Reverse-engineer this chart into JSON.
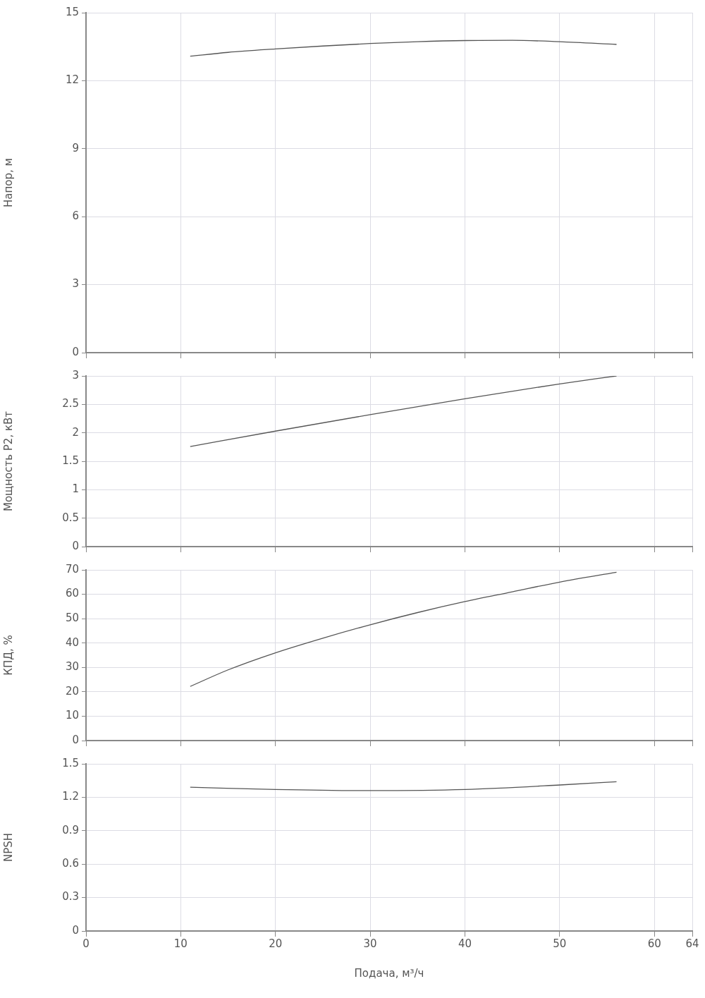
{
  "chart_data": [
    {
      "type": "line",
      "ylabel": "Напор, м",
      "x": [
        11,
        15,
        20,
        25,
        30,
        35,
        40,
        45,
        50,
        56
      ],
      "series": [
        {
          "color": "#555555",
          "values": [
            13.08,
            13.25,
            13.4,
            13.53,
            13.64,
            13.72,
            13.77,
            13.78,
            13.72,
            13.6
          ]
        }
      ],
      "xlim": [
        0,
        64
      ],
      "xticks": [
        0,
        10,
        20,
        30,
        40,
        50,
        60,
        64
      ],
      "ylim": [
        0,
        15
      ],
      "yticks": [
        0,
        3,
        6,
        9,
        12,
        15
      ],
      "grid": true,
      "tick_labels": "y",
      "marker": "none",
      "line_style": "solid",
      "legend": false
    },
    {
      "type": "line",
      "ylabel": "Мощность P2, кВт",
      "x": [
        11,
        20,
        30,
        40,
        50,
        56
      ],
      "series": [
        {
          "color": "#555555",
          "values": [
            1.76,
            2.03,
            2.32,
            2.6,
            2.86,
            3.0
          ]
        }
      ],
      "xlim": [
        0,
        64
      ],
      "xticks": [
        0,
        10,
        20,
        30,
        40,
        50,
        60,
        64
      ],
      "ylim": [
        0,
        3
      ],
      "yticks": [
        0,
        0.5,
        1,
        1.5,
        2,
        2.5,
        3
      ],
      "grid": true,
      "tick_labels": "y",
      "marker": "none",
      "line_style": "solid",
      "legend": false
    },
    {
      "type": "line",
      "ylabel": "КПД, %",
      "x": [
        11,
        15,
        20,
        25,
        30,
        35,
        40,
        45,
        50,
        56
      ],
      "series": [
        {
          "color": "#555555",
          "values": [
            22.2,
            29,
            36,
            42,
            47.5,
            52.5,
            57,
            61,
            65,
            69
          ]
        }
      ],
      "xlim": [
        0,
        64
      ],
      "xticks": [
        0,
        10,
        20,
        30,
        40,
        50,
        60,
        64
      ],
      "ylim": [
        0,
        70
      ],
      "yticks": [
        0,
        10,
        20,
        30,
        40,
        50,
        60,
        70
      ],
      "grid": true,
      "tick_labels": "y",
      "marker": "none",
      "line_style": "solid",
      "legend": false
    },
    {
      "type": "line",
      "ylabel": "NPSH",
      "xlabel": "Подача, м³/ч",
      "x": [
        11,
        20,
        30,
        40,
        50,
        56
      ],
      "series": [
        {
          "color": "#555555",
          "values": [
            1.29,
            1.27,
            1.26,
            1.27,
            1.31,
            1.34
          ]
        }
      ],
      "xlim": [
        0,
        64
      ],
      "xticks": [
        0,
        10,
        20,
        30,
        40,
        50,
        60,
        64
      ],
      "ylim": [
        0,
        1.5
      ],
      "yticks": [
        0,
        0.3,
        0.6,
        0.9,
        1.2,
        1.5
      ],
      "grid": true,
      "marker": "none",
      "line_style": "solid",
      "legend": false
    }
  ]
}
